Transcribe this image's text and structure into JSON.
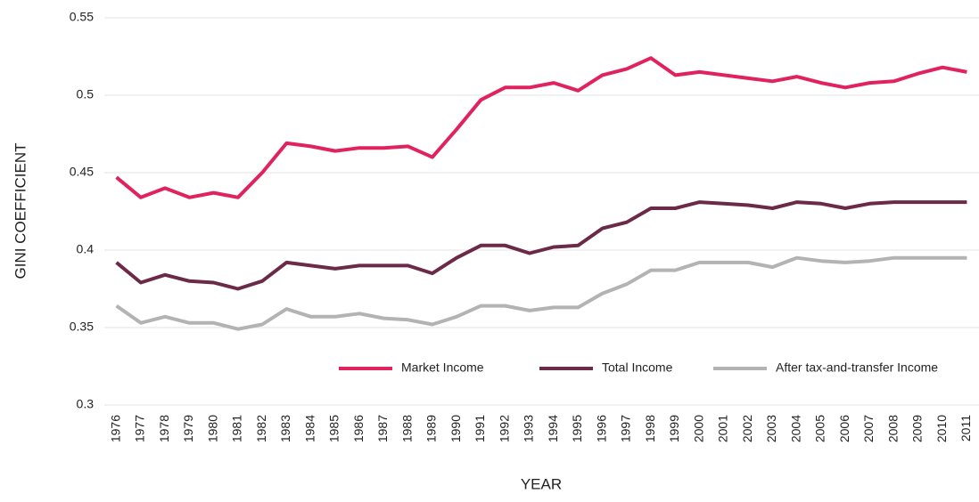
{
  "chart_data": {
    "type": "line",
    "x_label": "YEAR",
    "y_label": "GINI COEFFICIENT",
    "categories": [
      "1976",
      "1977",
      "1978",
      "1979",
      "1980",
      "1981",
      "1982",
      "1983",
      "1984",
      "1985",
      "1986",
      "1987",
      "1988",
      "1989",
      "1990",
      "1991",
      "1992",
      "1993",
      "1994",
      "1995",
      "1996",
      "1997",
      "1998",
      "1999",
      "2000",
      "2001",
      "2002",
      "2003",
      "2004",
      "2005",
      "2006",
      "2007",
      "2008",
      "2009",
      "2010",
      "2011"
    ],
    "series": [
      {
        "name": "Market Income",
        "color": "#e0235f",
        "values": [
          0.447,
          0.434,
          0.44,
          0.434,
          0.437,
          0.434,
          0.45,
          0.469,
          0.467,
          0.464,
          0.466,
          0.466,
          0.467,
          0.46,
          0.478,
          0.497,
          0.505,
          0.505,
          0.508,
          0.503,
          0.513,
          0.517,
          0.524,
          0.513,
          0.515,
          0.513,
          0.511,
          0.509,
          0.512,
          0.508,
          0.505,
          0.508,
          0.509,
          0.514,
          0.518,
          0.515
        ]
      },
      {
        "name": "Total Income",
        "color": "#6b2a47",
        "values": [
          0.392,
          0.379,
          0.384,
          0.38,
          0.379,
          0.375,
          0.38,
          0.392,
          0.39,
          0.388,
          0.39,
          0.39,
          0.39,
          0.385,
          0.395,
          0.403,
          0.403,
          0.398,
          0.402,
          0.403,
          0.414,
          0.418,
          0.427,
          0.427,
          0.431,
          0.43,
          0.429,
          0.427,
          0.431,
          0.43,
          0.427,
          0.43,
          0.431,
          0.431,
          0.431,
          0.431
        ]
      },
      {
        "name": "After tax-and-transfer Income",
        "color": "#b3b3b3",
        "values": [
          0.364,
          0.353,
          0.357,
          0.353,
          0.353,
          0.349,
          0.352,
          0.362,
          0.357,
          0.357,
          0.359,
          0.356,
          0.355,
          0.352,
          0.357,
          0.364,
          0.364,
          0.361,
          0.363,
          0.363,
          0.372,
          0.378,
          0.387,
          0.387,
          0.392,
          0.392,
          0.392,
          0.389,
          0.395,
          0.393,
          0.392,
          0.393,
          0.395,
          0.395,
          0.395,
          0.395
        ]
      }
    ],
    "ylim": [
      0.3,
      0.55
    ],
    "yticks": [
      0.3,
      0.35,
      0.4,
      0.45,
      0.5,
      0.55
    ],
    "grid": true,
    "legend": "lower right"
  }
}
